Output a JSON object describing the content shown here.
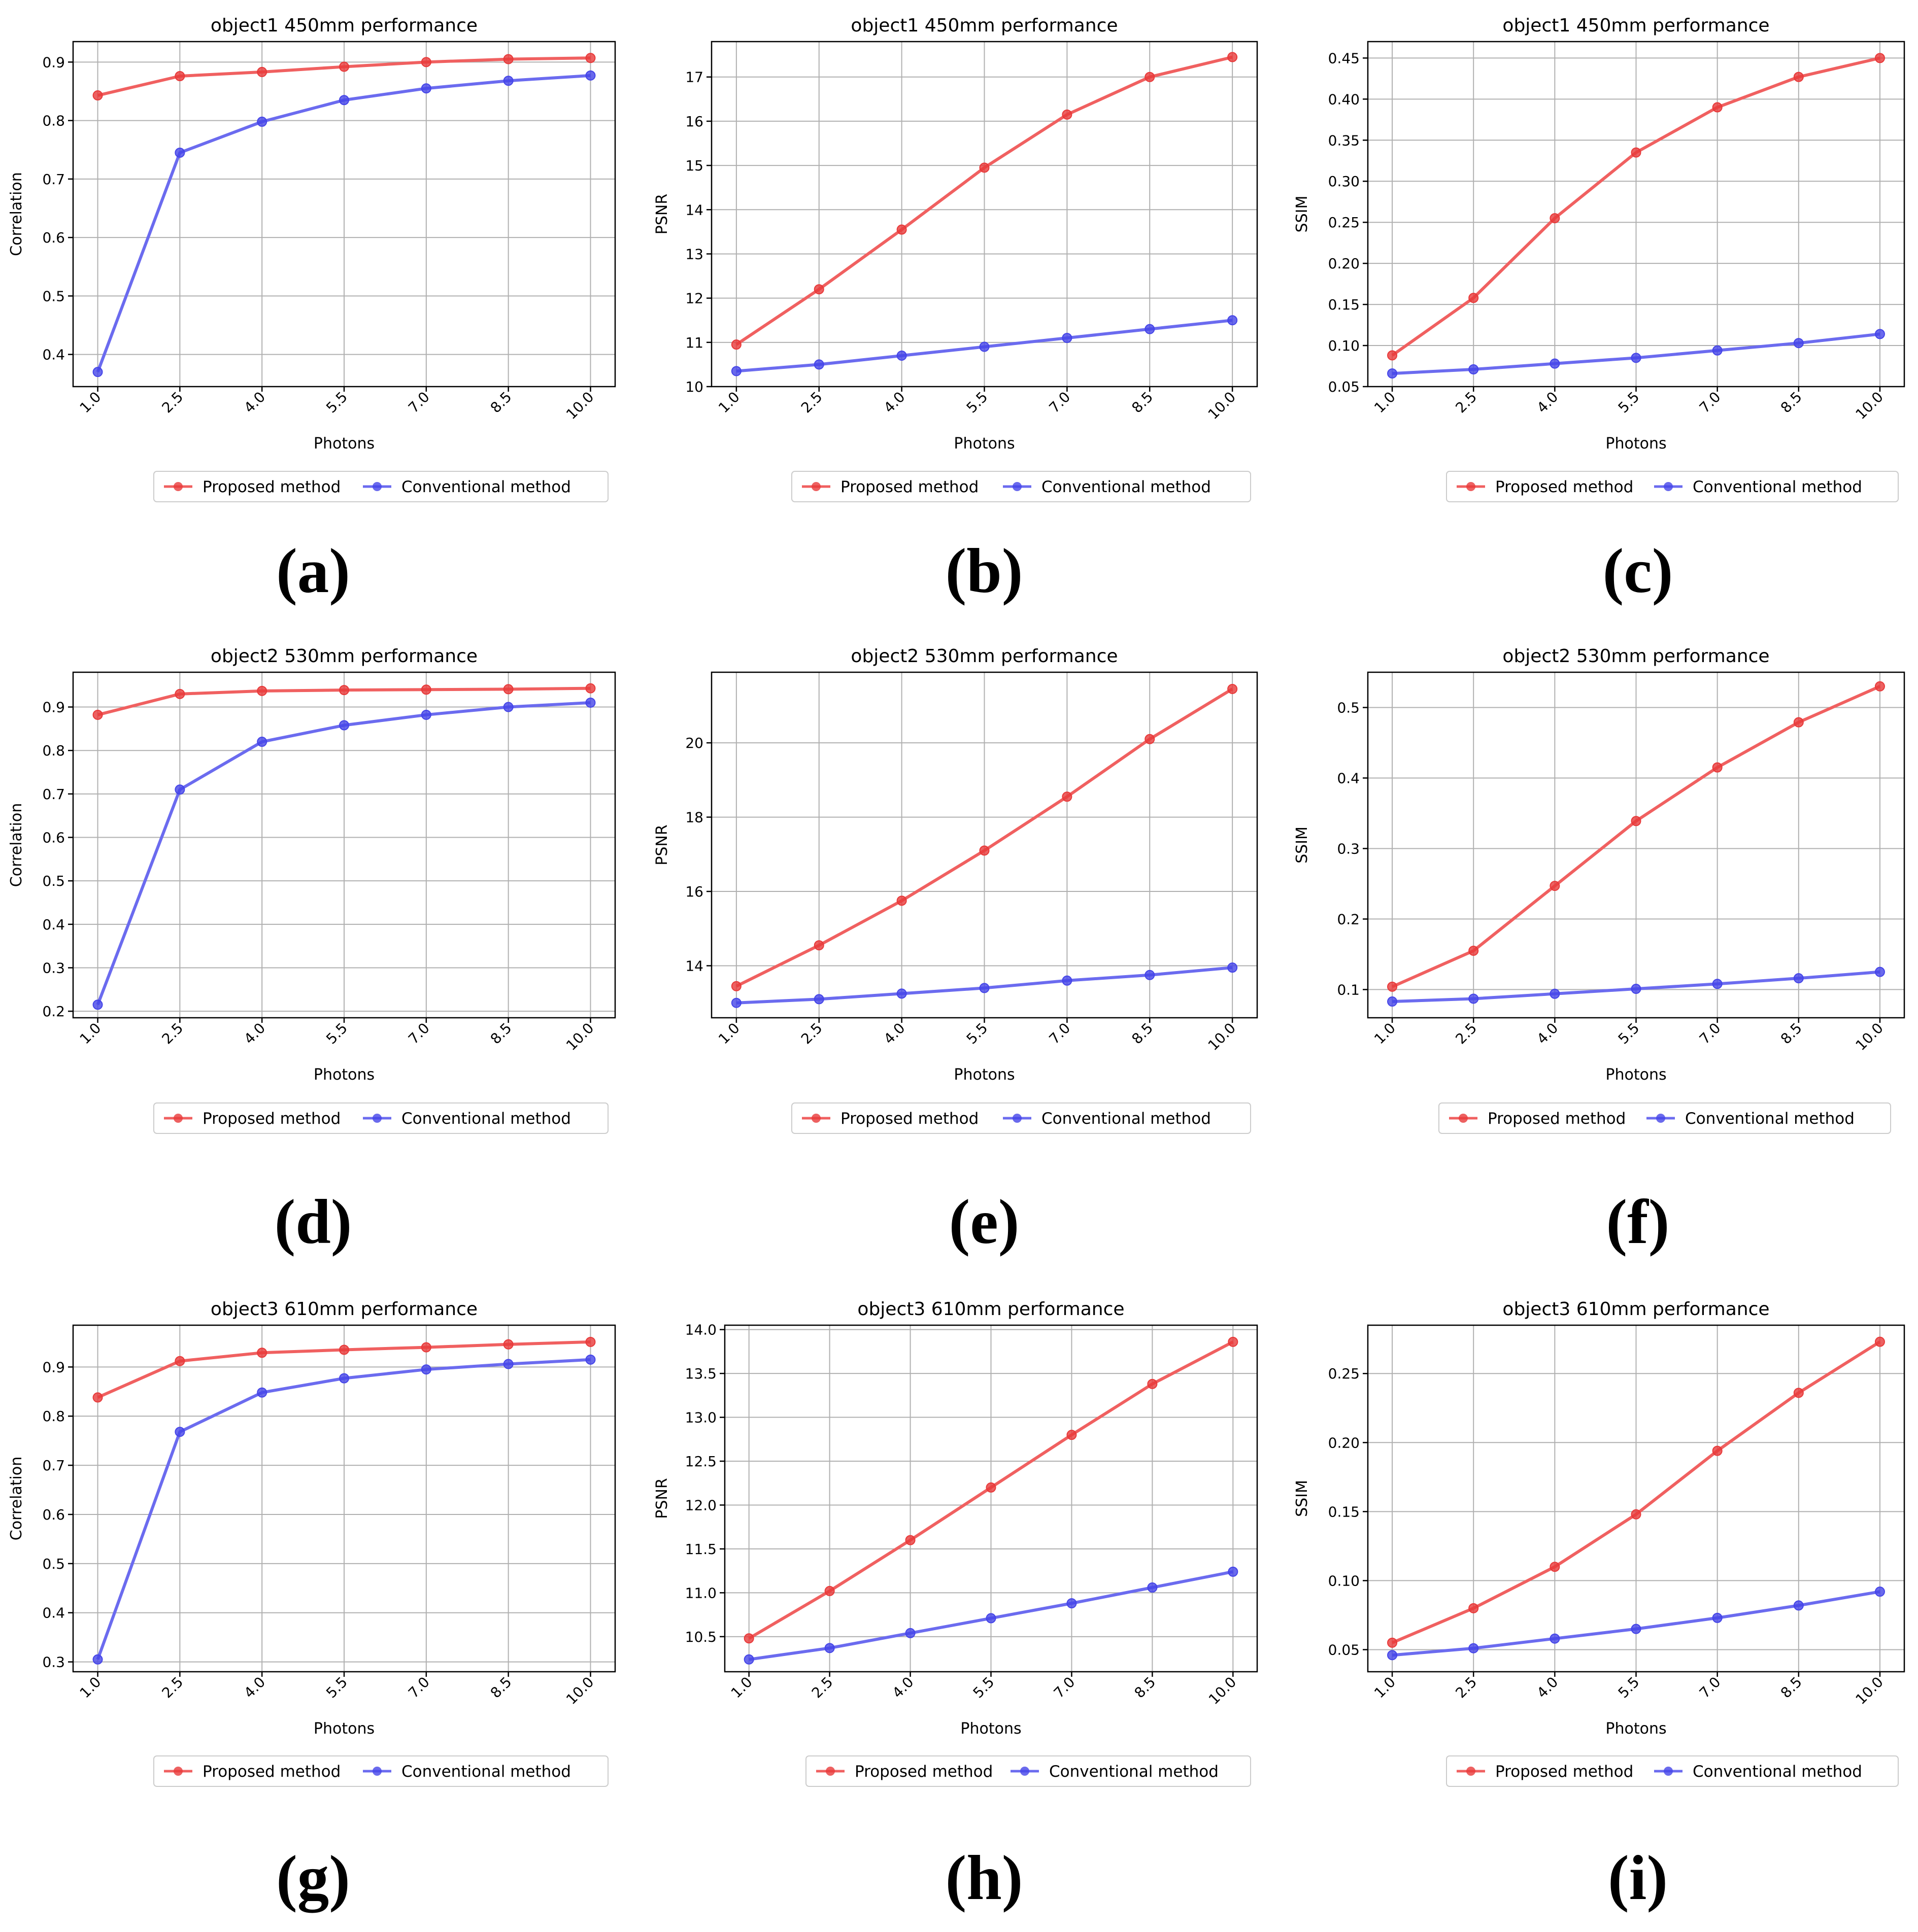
{
  "colors": {
    "proposed": "#f06060",
    "conventional": "#6b6bef",
    "proposed_marker": "#e83a3a",
    "conventional_marker": "#4545e8",
    "grid": "#b0b0b0"
  },
  "chart_data": [
    {
      "type": "line",
      "panel_label": "(a)",
      "title": "object1 450mm performance",
      "xlabel": "Photons",
      "ylabel": "Correlation",
      "x": [
        1.0,
        2.5,
        4.0,
        5.5,
        7.0,
        8.5,
        10.0
      ],
      "x_ticks": [
        "1.0",
        "2.5",
        "4.0",
        "5.5",
        "7.0",
        "8.5",
        "10.0"
      ],
      "ylim": [
        0.345,
        0.935
      ],
      "y_ticks": [
        0.4,
        0.5,
        0.6,
        0.7,
        0.8,
        0.9
      ],
      "y_tick_labels": [
        "0.4",
        "0.5",
        "0.6",
        "0.7",
        "0.8",
        "0.9"
      ],
      "grid": true,
      "legend": "below",
      "series": [
        {
          "name": "Proposed method",
          "values": [
            0.843,
            0.876,
            0.883,
            0.892,
            0.9,
            0.905,
            0.907
          ]
        },
        {
          "name": "Conventional method",
          "values": [
            0.37,
            0.745,
            0.798,
            0.835,
            0.855,
            0.868,
            0.877
          ]
        }
      ]
    },
    {
      "type": "line",
      "panel_label": "(b)",
      "title": "object1 450mm performance",
      "xlabel": "Photons",
      "ylabel": "PSNR",
      "x": [
        1.0,
        2.5,
        4.0,
        5.5,
        7.0,
        8.5,
        10.0
      ],
      "x_ticks": [
        "1.0",
        "2.5",
        "4.0",
        "5.5",
        "7.0",
        "8.5",
        "10.0"
      ],
      "ylim": [
        10.0,
        17.8
      ],
      "y_ticks": [
        10,
        11,
        12,
        13,
        14,
        15,
        16,
        17
      ],
      "y_tick_labels": [
        "10",
        "11",
        "12",
        "13",
        "14",
        "15",
        "16",
        "17"
      ],
      "grid": true,
      "legend": "below",
      "series": [
        {
          "name": "Proposed method",
          "values": [
            10.95,
            12.2,
            13.55,
            14.95,
            16.15,
            17.0,
            17.45
          ]
        },
        {
          "name": "Conventional method",
          "values": [
            10.35,
            10.5,
            10.7,
            10.9,
            11.1,
            11.3,
            11.5
          ]
        }
      ]
    },
    {
      "type": "line",
      "panel_label": "(c)",
      "title": "object1 450mm performance",
      "xlabel": "Photons",
      "ylabel": "SSIM",
      "x": [
        1.0,
        2.5,
        4.0,
        5.5,
        7.0,
        8.5,
        10.0
      ],
      "x_ticks": [
        "1.0",
        "2.5",
        "4.0",
        "5.5",
        "7.0",
        "8.5",
        "10.0"
      ],
      "ylim": [
        0.05,
        0.47
      ],
      "y_ticks": [
        0.05,
        0.1,
        0.15,
        0.2,
        0.25,
        0.3,
        0.35,
        0.4,
        0.45
      ],
      "y_tick_labels": [
        "0.05",
        "0.10",
        "0.15",
        "0.20",
        "0.25",
        "0.30",
        "0.35",
        "0.40",
        "0.45"
      ],
      "grid": true,
      "legend": "below",
      "series": [
        {
          "name": "Proposed method",
          "values": [
            0.088,
            0.158,
            0.255,
            0.335,
            0.39,
            0.427,
            0.45
          ]
        },
        {
          "name": "Conventional method",
          "values": [
            0.066,
            0.071,
            0.078,
            0.085,
            0.094,
            0.103,
            0.114
          ]
        }
      ]
    },
    {
      "type": "line",
      "panel_label": "(d)",
      "title": "object2 530mm performance",
      "xlabel": "Photons",
      "ylabel": "Correlation",
      "x": [
        1.0,
        2.5,
        4.0,
        5.5,
        7.0,
        8.5,
        10.0
      ],
      "x_ticks": [
        "1.0",
        "2.5",
        "4.0",
        "5.5",
        "7.0",
        "8.5",
        "10.0"
      ],
      "ylim": [
        0.185,
        0.98
      ],
      "y_ticks": [
        0.2,
        0.3,
        0.4,
        0.5,
        0.6,
        0.7,
        0.8,
        0.9
      ],
      "y_tick_labels": [
        "0.2",
        "0.3",
        "0.4",
        "0.5",
        "0.6",
        "0.7",
        "0.8",
        "0.9"
      ],
      "grid": true,
      "legend": "below",
      "series": [
        {
          "name": "Proposed method",
          "values": [
            0.882,
            0.93,
            0.937,
            0.939,
            0.94,
            0.941,
            0.943
          ]
        },
        {
          "name": "Conventional method",
          "values": [
            0.215,
            0.71,
            0.82,
            0.858,
            0.882,
            0.9,
            0.91
          ]
        }
      ]
    },
    {
      "type": "line",
      "panel_label": "(e)",
      "title": "object2 530mm performance",
      "xlabel": "Photons",
      "ylabel": "PSNR",
      "x": [
        1.0,
        2.5,
        4.0,
        5.5,
        7.0,
        8.5,
        10.0
      ],
      "x_ticks": [
        "1.0",
        "2.5",
        "4.0",
        "5.5",
        "7.0",
        "8.5",
        "10.0"
      ],
      "ylim": [
        12.6,
        21.9
      ],
      "y_ticks": [
        14,
        16,
        18,
        20
      ],
      "y_tick_labels": [
        "14",
        "16",
        "18",
        "20"
      ],
      "grid": true,
      "legend": "below",
      "series": [
        {
          "name": "Proposed method",
          "values": [
            13.45,
            14.55,
            15.75,
            17.1,
            18.55,
            20.1,
            21.45
          ]
        },
        {
          "name": "Conventional method",
          "values": [
            13.0,
            13.1,
            13.25,
            13.4,
            13.6,
            13.75,
            13.95
          ]
        }
      ]
    },
    {
      "type": "line",
      "panel_label": "(f)",
      "title": "object2 530mm performance",
      "xlabel": "Photons",
      "ylabel": "SSIM",
      "x": [
        1.0,
        2.5,
        4.0,
        5.5,
        7.0,
        8.5,
        10.0
      ],
      "x_ticks": [
        "1.0",
        "2.5",
        "4.0",
        "5.5",
        "7.0",
        "8.5",
        "10.0"
      ],
      "ylim": [
        0.06,
        0.55
      ],
      "y_ticks": [
        0.1,
        0.2,
        0.3,
        0.4,
        0.5
      ],
      "y_tick_labels": [
        "0.1",
        "0.2",
        "0.3",
        "0.4",
        "0.5"
      ],
      "grid": true,
      "legend": "below",
      "series": [
        {
          "name": "Proposed method",
          "values": [
            0.104,
            0.155,
            0.247,
            0.339,
            0.415,
            0.479,
            0.53
          ]
        },
        {
          "name": "Conventional method",
          "values": [
            0.083,
            0.087,
            0.094,
            0.101,
            0.108,
            0.116,
            0.125
          ]
        }
      ]
    },
    {
      "type": "line",
      "panel_label": "(g)",
      "title": "object3 610mm performance",
      "xlabel": "Photons",
      "ylabel": "Correlation",
      "x": [
        1.0,
        2.5,
        4.0,
        5.5,
        7.0,
        8.5,
        10.0
      ],
      "x_ticks": [
        "1.0",
        "2.5",
        "4.0",
        "5.5",
        "7.0",
        "8.5",
        "10.0"
      ],
      "ylim": [
        0.28,
        0.985
      ],
      "y_ticks": [
        0.3,
        0.4,
        0.5,
        0.6,
        0.7,
        0.8,
        0.9
      ],
      "y_tick_labels": [
        "0.3",
        "0.4",
        "0.5",
        "0.6",
        "0.7",
        "0.8",
        "0.9"
      ],
      "grid": true,
      "legend": "below",
      "series": [
        {
          "name": "Proposed method",
          "values": [
            0.838,
            0.912,
            0.929,
            0.935,
            0.94,
            0.946,
            0.951
          ]
        },
        {
          "name": "Conventional method",
          "values": [
            0.305,
            0.768,
            0.848,
            0.877,
            0.895,
            0.906,
            0.915
          ]
        }
      ]
    },
    {
      "type": "line",
      "panel_label": "(h)",
      "title": "object3 610mm performance",
      "xlabel": "Photons",
      "ylabel": "PSNR",
      "x": [
        1.0,
        2.5,
        4.0,
        5.5,
        7.0,
        8.5,
        10.0
      ],
      "x_ticks": [
        "1.0",
        "2.5",
        "4.0",
        "5.5",
        "7.0",
        "8.5",
        "10.0"
      ],
      "ylim": [
        10.1,
        14.05
      ],
      "y_ticks": [
        10.5,
        11.0,
        11.5,
        12.0,
        12.5,
        13.0,
        13.5,
        14.0
      ],
      "y_tick_labels": [
        "10.5",
        "11.0",
        "11.5",
        "12.0",
        "12.5",
        "13.0",
        "13.5",
        "14.0"
      ],
      "grid": true,
      "legend": "below",
      "series": [
        {
          "name": "Proposed method",
          "values": [
            10.48,
            11.02,
            11.6,
            12.2,
            12.8,
            13.38,
            13.86
          ]
        },
        {
          "name": "Conventional method",
          "values": [
            10.24,
            10.37,
            10.54,
            10.71,
            10.88,
            11.06,
            11.24
          ]
        }
      ]
    },
    {
      "type": "line",
      "panel_label": "(i)",
      "title": "object3 610mm performance",
      "xlabel": "Photons",
      "ylabel": "SSIM",
      "x": [
        1.0,
        2.5,
        4.0,
        5.5,
        7.0,
        8.5,
        10.0
      ],
      "x_ticks": [
        "1.0",
        "2.5",
        "4.0",
        "5.5",
        "7.0",
        "8.5",
        "10.0"
      ],
      "ylim": [
        0.034,
        0.285
      ],
      "y_ticks": [
        0.05,
        0.1,
        0.15,
        0.2,
        0.25
      ],
      "y_tick_labels": [
        "0.05",
        "0.10",
        "0.15",
        "0.20",
        "0.25"
      ],
      "grid": true,
      "legend": "below",
      "series": [
        {
          "name": "Proposed method",
          "values": [
            0.055,
            0.08,
            0.11,
            0.148,
            0.194,
            0.236,
            0.273
          ]
        },
        {
          "name": "Conventional method",
          "values": [
            0.046,
            0.051,
            0.058,
            0.065,
            0.073,
            0.082,
            0.092
          ]
        }
      ]
    }
  ]
}
